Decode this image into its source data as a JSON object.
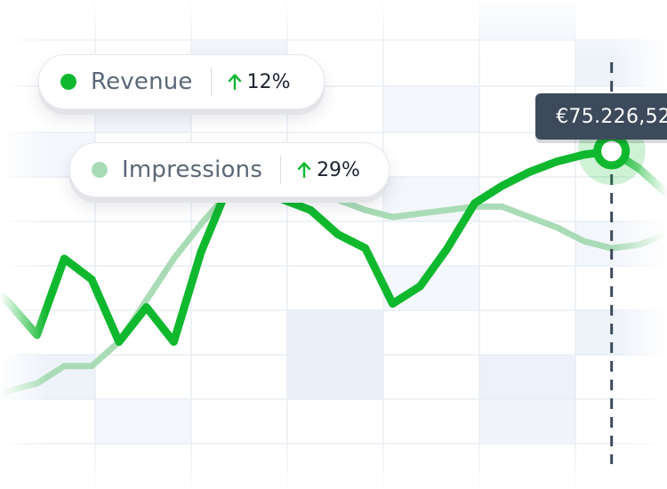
{
  "chart_data": {
    "type": "line",
    "series": [
      {
        "name": "Revenue",
        "color": "#10b82e",
        "change_label": "12%",
        "change_direction": "up",
        "points": [
          [
            0,
            0.63
          ],
          [
            1,
            0.56
          ],
          [
            2,
            0.47
          ],
          [
            3,
            0.69
          ],
          [
            4,
            0.63
          ],
          [
            5,
            0.45
          ],
          [
            6,
            0.55
          ],
          [
            7,
            0.45
          ],
          [
            8,
            0.71
          ],
          [
            9,
            0.9
          ],
          [
            10,
            0.95
          ],
          [
            11,
            0.86
          ],
          [
            12,
            0.83
          ],
          [
            13,
            0.76
          ],
          [
            14,
            0.72
          ],
          [
            15,
            0.56
          ],
          [
            16,
            0.61
          ],
          [
            17,
            0.72
          ],
          [
            18,
            0.85
          ],
          [
            19,
            0.9
          ],
          [
            20,
            0.94
          ],
          [
            21,
            0.97
          ],
          [
            22,
            0.99
          ],
          [
            23,
            1.0
          ],
          [
            24,
            0.95
          ],
          [
            25,
            0.88
          ],
          [
            26,
            0.82
          ]
        ]
      },
      {
        "name": "Impressions",
        "color": "#a9dcb6",
        "change_label": "29%",
        "change_direction": "up",
        "points": [
          [
            0,
            0.28
          ],
          [
            1,
            0.31
          ],
          [
            2,
            0.33
          ],
          [
            3,
            0.38
          ],
          [
            4,
            0.38
          ],
          [
            5,
            0.45
          ],
          [
            6,
            0.57
          ],
          [
            7,
            0.69
          ],
          [
            8,
            0.79
          ],
          [
            9,
            0.88
          ],
          [
            10,
            0.96
          ],
          [
            11,
            0.93
          ],
          [
            12,
            0.9
          ],
          [
            13,
            0.86
          ],
          [
            14,
            0.83
          ],
          [
            15,
            0.81
          ],
          [
            16,
            0.82
          ],
          [
            17,
            0.83
          ],
          [
            18,
            0.84
          ],
          [
            19,
            0.84
          ],
          [
            20,
            0.81
          ],
          [
            21,
            0.78
          ],
          [
            22,
            0.74
          ],
          [
            23,
            0.72
          ],
          [
            24,
            0.73
          ],
          [
            25,
            0.76
          ],
          [
            26,
            0.8
          ]
        ]
      }
    ],
    "highlight": {
      "series": "Revenue",
      "x": 23,
      "label": "€75.226,52"
    },
    "grid": true,
    "legend": "top-left"
  }
}
